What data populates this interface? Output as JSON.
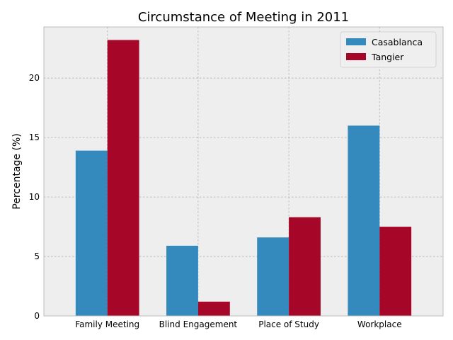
{
  "chart_data": {
    "type": "bar",
    "title": "Circumstance of Meeting in 2011",
    "xlabel": "",
    "ylabel": "Percentage (%)",
    "categories": [
      "Family Meeting",
      "Blind Engagement",
      "Place of Study",
      "Workplace"
    ],
    "series": [
      {
        "name": "Casablanca",
        "color": "#348abd",
        "values": [
          13.9,
          5.9,
          6.6,
          16.0
        ]
      },
      {
        "name": "Tangier",
        "color": "#a60628",
        "values": [
          23.2,
          1.2,
          8.3,
          7.5
        ]
      }
    ],
    "ylim": [
      0,
      24.3
    ],
    "yticks": [
      0,
      5,
      10,
      15,
      20
    ],
    "grid": true,
    "legend": "top-right",
    "background": "#eeeeee",
    "frame_color": "#bcbcbc"
  }
}
